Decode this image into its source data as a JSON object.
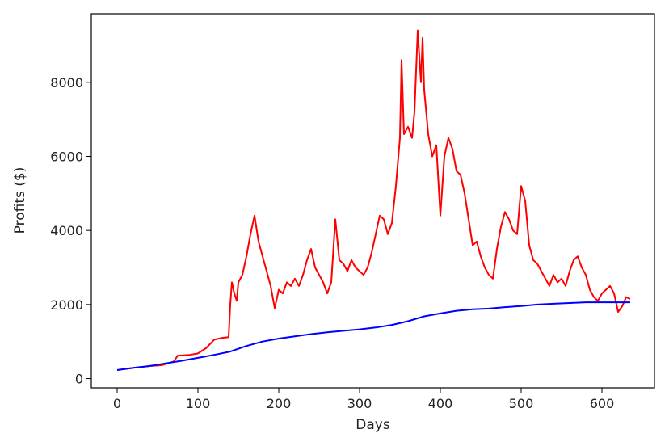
{
  "chart_data": {
    "type": "line",
    "title": "",
    "xlabel": "Days",
    "ylabel": "Profits ($)",
    "xlim": [
      -32,
      665
    ],
    "ylim": [
      -250,
      9850
    ],
    "xticks": [
      0,
      100,
      200,
      300,
      400,
      500,
      600
    ],
    "yticks": [
      0,
      2000,
      4000,
      6000,
      8000
    ],
    "grid": false,
    "legend": "none",
    "series": [
      {
        "color": "#ff0000",
        "points": [
          [
            0,
            230
          ],
          [
            20,
            290
          ],
          [
            40,
            340
          ],
          [
            55,
            360
          ],
          [
            70,
            460
          ],
          [
            75,
            620
          ],
          [
            90,
            640
          ],
          [
            100,
            680
          ],
          [
            110,
            820
          ],
          [
            120,
            1050
          ],
          [
            130,
            1100
          ],
          [
            138,
            1120
          ],
          [
            140,
            2000
          ],
          [
            142,
            2600
          ],
          [
            145,
            2300
          ],
          [
            148,
            2100
          ],
          [
            150,
            2600
          ],
          [
            155,
            2800
          ],
          [
            160,
            3300
          ],
          [
            165,
            3900
          ],
          [
            170,
            4400
          ],
          [
            175,
            3700
          ],
          [
            180,
            3300
          ],
          [
            185,
            2900
          ],
          [
            190,
            2500
          ],
          [
            195,
            1900
          ],
          [
            200,
            2400
          ],
          [
            205,
            2300
          ],
          [
            210,
            2600
          ],
          [
            215,
            2500
          ],
          [
            220,
            2700
          ],
          [
            225,
            2500
          ],
          [
            230,
            2800
          ],
          [
            235,
            3200
          ],
          [
            240,
            3500
          ],
          [
            245,
            3000
          ],
          [
            250,
            2800
          ],
          [
            255,
            2600
          ],
          [
            260,
            2300
          ],
          [
            265,
            2600
          ],
          [
            270,
            4300
          ],
          [
            275,
            3200
          ],
          [
            280,
            3100
          ],
          [
            285,
            2900
          ],
          [
            290,
            3200
          ],
          [
            295,
            3000
          ],
          [
            300,
            2900
          ],
          [
            305,
            2800
          ],
          [
            310,
            3000
          ],
          [
            315,
            3400
          ],
          [
            320,
            3900
          ],
          [
            325,
            4400
          ],
          [
            330,
            4300
          ],
          [
            335,
            3900
          ],
          [
            340,
            4200
          ],
          [
            345,
            5200
          ],
          [
            350,
            6500
          ],
          [
            352,
            8600
          ],
          [
            355,
            6600
          ],
          [
            360,
            6800
          ],
          [
            365,
            6500
          ],
          [
            368,
            7200
          ],
          [
            372,
            9400
          ],
          [
            376,
            8000
          ],
          [
            378,
            9200
          ],
          [
            380,
            7800
          ],
          [
            385,
            6600
          ],
          [
            390,
            6000
          ],
          [
            395,
            6300
          ],
          [
            400,
            4400
          ],
          [
            405,
            6000
          ],
          [
            410,
            6500
          ],
          [
            415,
            6200
          ],
          [
            420,
            5600
          ],
          [
            425,
            5500
          ],
          [
            430,
            5000
          ],
          [
            435,
            4300
          ],
          [
            440,
            3600
          ],
          [
            445,
            3700
          ],
          [
            450,
            3300
          ],
          [
            455,
            3000
          ],
          [
            460,
            2800
          ],
          [
            465,
            2700
          ],
          [
            470,
            3500
          ],
          [
            475,
            4100
          ],
          [
            480,
            4500
          ],
          [
            485,
            4300
          ],
          [
            490,
            4000
          ],
          [
            495,
            3900
          ],
          [
            500,
            5200
          ],
          [
            505,
            4800
          ],
          [
            510,
            3600
          ],
          [
            515,
            3200
          ],
          [
            520,
            3100
          ],
          [
            525,
            2900
          ],
          [
            530,
            2700
          ],
          [
            535,
            2500
          ],
          [
            540,
            2800
          ],
          [
            545,
            2600
          ],
          [
            550,
            2700
          ],
          [
            555,
            2500
          ],
          [
            560,
            2900
          ],
          [
            565,
            3200
          ],
          [
            570,
            3300
          ],
          [
            575,
            3000
          ],
          [
            580,
            2800
          ],
          [
            585,
            2400
          ],
          [
            590,
            2200
          ],
          [
            595,
            2100
          ],
          [
            600,
            2300
          ],
          [
            605,
            2400
          ],
          [
            610,
            2500
          ],
          [
            615,
            2300
          ],
          [
            620,
            1800
          ],
          [
            625,
            1950
          ],
          [
            630,
            2200
          ],
          [
            635,
            2150
          ]
        ]
      },
      {
        "color": "#0000ff",
        "points": [
          [
            0,
            230
          ],
          [
            20,
            290
          ],
          [
            40,
            340
          ],
          [
            60,
            410
          ],
          [
            80,
            480
          ],
          [
            100,
            560
          ],
          [
            120,
            640
          ],
          [
            140,
            730
          ],
          [
            160,
            880
          ],
          [
            180,
            1000
          ],
          [
            200,
            1080
          ],
          [
            220,
            1140
          ],
          [
            240,
            1200
          ],
          [
            260,
            1250
          ],
          [
            280,
            1290
          ],
          [
            300,
            1330
          ],
          [
            320,
            1380
          ],
          [
            340,
            1450
          ],
          [
            360,
            1550
          ],
          [
            380,
            1680
          ],
          [
            400,
            1760
          ],
          [
            420,
            1830
          ],
          [
            440,
            1870
          ],
          [
            460,
            1890
          ],
          [
            480,
            1930
          ],
          [
            500,
            1960
          ],
          [
            520,
            2000
          ],
          [
            540,
            2020
          ],
          [
            560,
            2040
          ],
          [
            580,
            2060
          ],
          [
            600,
            2060
          ],
          [
            620,
            2060
          ],
          [
            635,
            2060
          ]
        ]
      }
    ]
  }
}
